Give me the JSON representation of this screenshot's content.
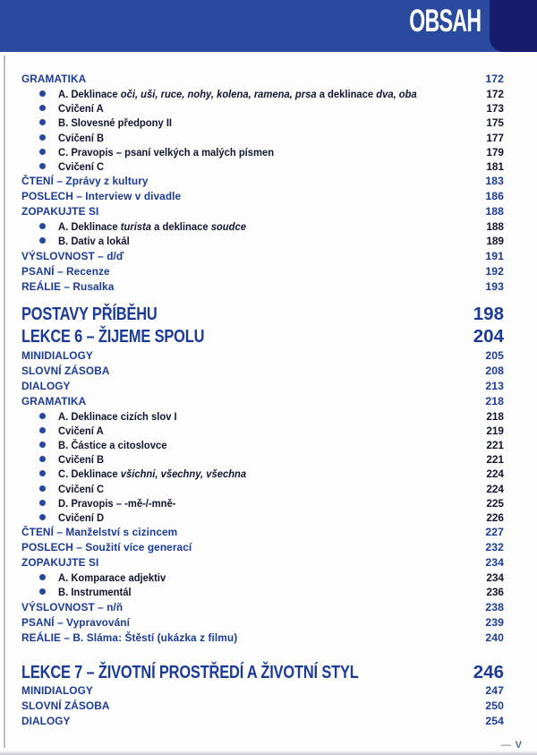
{
  "header": {
    "title": "OBSAH"
  },
  "footer": {
    "dash": "—",
    "page_label": "V"
  },
  "colors": {
    "band_blue": "#2a4a9e",
    "corner_navy": "#181c6c",
    "heading_blue": "#1c3b97",
    "item_dark": "#12152f",
    "bullet_blue": "#2746a0",
    "footer_gray": "#5b6889"
  },
  "toc": {
    "rows": [
      {
        "type": "section",
        "segments": [
          {
            "text": "GRAMATIKA"
          }
        ],
        "page": "172"
      },
      {
        "type": "item",
        "segments": [
          {
            "text": "A. Deklinace "
          },
          {
            "text": "oči, uši, ruce, nohy, kolena, ramena, prsa",
            "italic": true
          },
          {
            "text": " a deklinace "
          },
          {
            "text": "dva, oba",
            "italic": true
          }
        ],
        "page": "172"
      },
      {
        "type": "item",
        "segments": [
          {
            "text": "Cvičení A"
          }
        ],
        "page": "173"
      },
      {
        "type": "item",
        "segments": [
          {
            "text": "B. Slovesné předpony II"
          }
        ],
        "page": "175"
      },
      {
        "type": "item",
        "segments": [
          {
            "text": "Cvičení B"
          }
        ],
        "page": "177"
      },
      {
        "type": "item",
        "segments": [
          {
            "text": "C. Pravopis – psaní velkých a malých písmen"
          }
        ],
        "page": "179"
      },
      {
        "type": "item",
        "segments": [
          {
            "text": "Cvičení C"
          }
        ],
        "page": "181"
      },
      {
        "type": "section",
        "segments": [
          {
            "text": "ČTENÍ – Zprávy z kultury"
          }
        ],
        "page": "183"
      },
      {
        "type": "section",
        "segments": [
          {
            "text": "POSLECH – Interview v divadle"
          }
        ],
        "page": "186"
      },
      {
        "type": "section",
        "segments": [
          {
            "text": "ZOPAKUJTE SI"
          }
        ],
        "page": "188"
      },
      {
        "type": "item",
        "segments": [
          {
            "text": "A. Deklinace "
          },
          {
            "text": "turista",
            "italic": true
          },
          {
            "text": " a deklinace "
          },
          {
            "text": "soudce",
            "italic": true
          }
        ],
        "page": "188"
      },
      {
        "type": "item",
        "segments": [
          {
            "text": "B. Dativ a lokál"
          }
        ],
        "page": "189"
      },
      {
        "type": "section",
        "segments": [
          {
            "text": "VÝSLOVNOST – d/ď"
          }
        ],
        "page": "191"
      },
      {
        "type": "section",
        "segments": [
          {
            "text": "PSANÍ – Recenze"
          }
        ],
        "page": "192"
      },
      {
        "type": "section",
        "segments": [
          {
            "text": "REÁLIE – Rusalka"
          }
        ],
        "page": "193"
      },
      {
        "type": "big",
        "gap": "sm",
        "segments": [
          {
            "text": "POSTAVY PŘÍBĚHU"
          }
        ],
        "page": "198"
      },
      {
        "type": "big",
        "segments": [
          {
            "text": "LEKCE 6 – ŽIJEME SPOLU"
          }
        ],
        "page": "204"
      },
      {
        "type": "section",
        "segments": [
          {
            "text": "MINIDIALOGY"
          }
        ],
        "page": "205"
      },
      {
        "type": "section",
        "segments": [
          {
            "text": "SLOVNÍ ZÁSOBA"
          }
        ],
        "page": "208"
      },
      {
        "type": "section",
        "segments": [
          {
            "text": "DIALOGY"
          }
        ],
        "page": "213"
      },
      {
        "type": "section",
        "segments": [
          {
            "text": "GRAMATIKA"
          }
        ],
        "page": "218"
      },
      {
        "type": "item",
        "segments": [
          {
            "text": "A. Deklinace cizích slov I"
          }
        ],
        "page": "218"
      },
      {
        "type": "item",
        "segments": [
          {
            "text": "Cvičení A"
          }
        ],
        "page": "219"
      },
      {
        "type": "item",
        "segments": [
          {
            "text": "B. Částice a citoslovce"
          }
        ],
        "page": "221"
      },
      {
        "type": "item",
        "segments": [
          {
            "text": "Cvičení B"
          }
        ],
        "page": "221"
      },
      {
        "type": "item",
        "segments": [
          {
            "text": "C. Deklinace "
          },
          {
            "text": "všichni, všechny, všechna",
            "italic": true
          }
        ],
        "page": "224"
      },
      {
        "type": "item",
        "segments": [
          {
            "text": "Cvičení C"
          }
        ],
        "page": "224"
      },
      {
        "type": "item",
        "segments": [
          {
            "text": "D. Pravopis – -mě-/-mně-"
          }
        ],
        "page": "225"
      },
      {
        "type": "item",
        "segments": [
          {
            "text": "Cvičení D"
          }
        ],
        "page": "226"
      },
      {
        "type": "section",
        "segments": [
          {
            "text": "ČTENÍ – Manželství s cizincem"
          }
        ],
        "page": "227"
      },
      {
        "type": "section",
        "segments": [
          {
            "text": "POSLECH – Soužití více generací"
          }
        ],
        "page": "232"
      },
      {
        "type": "section",
        "segments": [
          {
            "text": "ZOPAKUJTE SI"
          }
        ],
        "page": "234"
      },
      {
        "type": "item",
        "segments": [
          {
            "text": "A. Komparace adjektiv"
          }
        ],
        "page": "234"
      },
      {
        "type": "item",
        "segments": [
          {
            "text": "B. Instrumentál"
          }
        ],
        "page": "236"
      },
      {
        "type": "section",
        "segments": [
          {
            "text": "VÝSLOVNOST – n/ň"
          }
        ],
        "page": "238"
      },
      {
        "type": "section",
        "segments": [
          {
            "text": "PSANÍ – Vypravování"
          }
        ],
        "page": "239"
      },
      {
        "type": "section",
        "segments": [
          {
            "text": "REÁLIE – B. Sláma: Štěstí (ukázka z filmu)"
          }
        ],
        "page": "240"
      },
      {
        "type": "big",
        "gap": "lg",
        "segments": [
          {
            "text": "LEKCE 7 – ŽIVOTNÍ PROSTŘEDÍ A ŽIVOTNÍ STYL"
          }
        ],
        "page": "246"
      },
      {
        "type": "section",
        "segments": [
          {
            "text": "MINIDIALOGY"
          }
        ],
        "page": "247"
      },
      {
        "type": "section",
        "segments": [
          {
            "text": "SLOVNÍ ZÁSOBA"
          }
        ],
        "page": "250"
      },
      {
        "type": "section",
        "segments": [
          {
            "text": "DIALOGY"
          }
        ],
        "page": "254"
      }
    ]
  }
}
